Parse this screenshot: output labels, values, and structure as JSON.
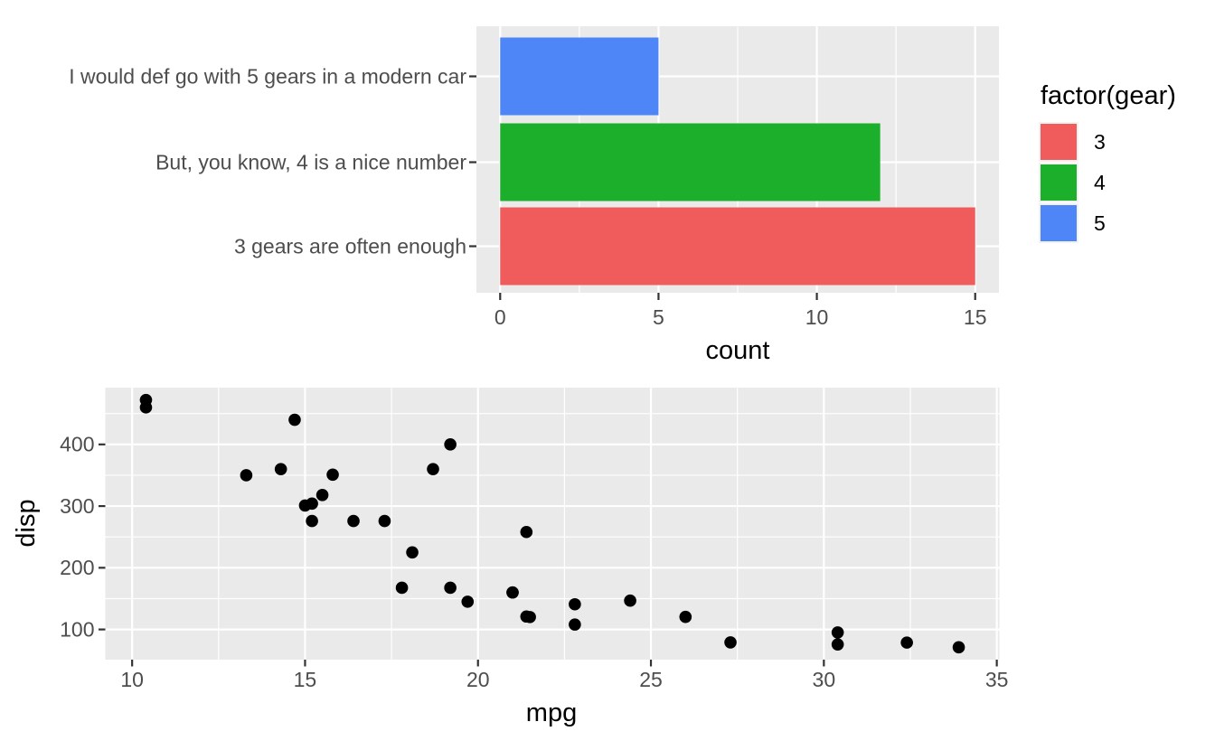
{
  "page": {
    "background": "#ffffff"
  },
  "colors": {
    "panel_background": "#eaeaea",
    "gridline": "#ffffff",
    "tick_mark": "#333333",
    "tick_text": "#4d4d4d",
    "title_text": "#000000",
    "bar_red": "#f05c5c",
    "bar_green": "#1caf2b",
    "bar_blue": "#4e86f8",
    "point_black": "#000000"
  },
  "chart_data": [
    {
      "type": "bar",
      "orientation": "horizontal",
      "title": "",
      "xlabel": "count",
      "ylabel": "",
      "categories": [
        "I would def go with 5 gears in a modern car",
        "But, you know, 4 is a nice number",
        "3 gears are often enough"
      ],
      "values": [
        5,
        12,
        15
      ],
      "bar_colors": [
        "#4e86f8",
        "#1caf2b",
        "#f05c5c"
      ],
      "xlim": [
        -0.75,
        15.75
      ],
      "x_ticks": [
        0,
        5,
        10,
        15
      ],
      "x_minor_ticks": [
        2.5,
        7.5,
        12.5
      ],
      "grid": true,
      "legend_position": "right",
      "legend": {
        "title": "factor(gear)",
        "entries": [
          {
            "label": "3",
            "color": "#f05c5c"
          },
          {
            "label": "4",
            "color": "#1caf2b"
          },
          {
            "label": "5",
            "color": "#4e86f8"
          }
        ]
      }
    },
    {
      "type": "scatter",
      "title": "",
      "xlabel": "mpg",
      "ylabel": "disp",
      "xlim": [
        9.225,
        35.075
      ],
      "ylim": [
        51.05,
        492.05
      ],
      "x_ticks": [
        10,
        15,
        20,
        25,
        30,
        35
      ],
      "x_minor_ticks": [
        12.5,
        17.5,
        22.5,
        27.5,
        32.5
      ],
      "y_ticks": [
        100,
        200,
        300,
        400
      ],
      "y_minor_ticks": [
        150,
        250,
        350,
        450
      ],
      "grid": true,
      "point_color": "#000000",
      "points": [
        [
          21.0,
          160.0
        ],
        [
          21.0,
          160.0
        ],
        [
          22.8,
          108.0
        ],
        [
          21.4,
          258.0
        ],
        [
          18.7,
          360.0
        ],
        [
          18.1,
          225.0
        ],
        [
          14.3,
          360.0
        ],
        [
          24.4,
          146.7
        ],
        [
          22.8,
          140.8
        ],
        [
          19.2,
          167.6
        ],
        [
          17.8,
          167.6
        ],
        [
          16.4,
          275.8
        ],
        [
          17.3,
          275.8
        ],
        [
          15.2,
          275.8
        ],
        [
          10.4,
          472.0
        ],
        [
          10.4,
          460.0
        ],
        [
          14.7,
          440.0
        ],
        [
          32.4,
          78.7
        ],
        [
          30.4,
          75.7
        ],
        [
          33.9,
          71.1
        ],
        [
          21.5,
          120.1
        ],
        [
          15.5,
          318.0
        ],
        [
          15.2,
          304.0
        ],
        [
          13.3,
          350.0
        ],
        [
          19.2,
          400.0
        ],
        [
          27.3,
          79.0
        ],
        [
          26.0,
          120.3
        ],
        [
          30.4,
          95.1
        ],
        [
          15.8,
          351.0
        ],
        [
          19.7,
          145.0
        ],
        [
          15.0,
          301.0
        ],
        [
          21.4,
          121.0
        ]
      ]
    }
  ]
}
